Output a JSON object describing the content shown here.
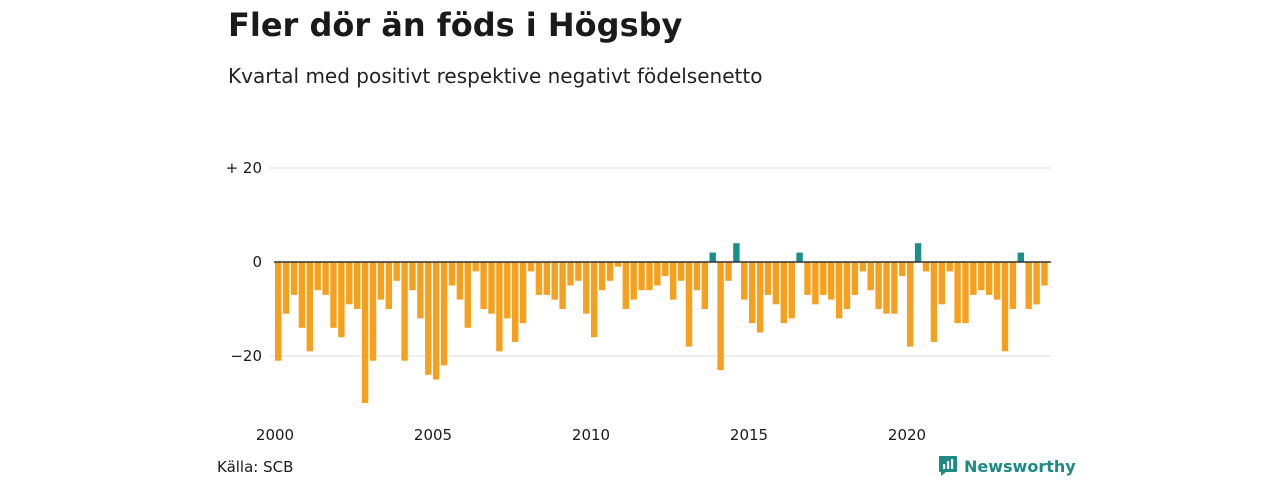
{
  "header": {
    "title": "Fler dör än föds i Högsby",
    "subtitle": "Kvartal med positivt respektive negativt födelsenetto"
  },
  "footer": {
    "source": "Källa: SCB",
    "brand": "Newsworthy",
    "brand_icon": "newsworthy-logo-icon"
  },
  "colors": {
    "positive": "#1a9089",
    "negative": "#f7a01e",
    "grid": "#dddddd",
    "brand": "#1d8a83"
  },
  "chart_data": {
    "type": "bar",
    "title": "Fler dör än föds i Högsby",
    "subtitle": "Kvartal med positivt respektive negativt födelsenetto",
    "xlabel": "",
    "ylabel": "",
    "x_start": 2000,
    "x_end": 2024.75,
    "bar_interval_years": 0.25,
    "ylim": [
      -31,
      21
    ],
    "yticks": [
      {
        "value": 20,
        "label": "+ 20"
      },
      {
        "value": 0,
        "label": "0"
      },
      {
        "value": -20,
        "label": "−20"
      }
    ],
    "xticks": [
      {
        "value": 2000,
        "label": "2000"
      },
      {
        "value": 2005,
        "label": "2005"
      },
      {
        "value": 2010,
        "label": "2010"
      },
      {
        "value": 2015,
        "label": "2015"
      },
      {
        "value": 2020,
        "label": "2020"
      }
    ],
    "grid": true,
    "legend": "none",
    "values": [
      -21,
      -11,
      -7,
      -14,
      -19,
      -6,
      -7,
      -14,
      -16,
      -9,
      -10,
      -30,
      -21,
      -8,
      -10,
      -4,
      -21,
      -6,
      -12,
      -24,
      -25,
      -22,
      -5,
      -8,
      -14,
      -2,
      -10,
      -11,
      -19,
      -12,
      -17,
      -13,
      -2,
      -7,
      -7,
      -8,
      -10,
      -5,
      -4,
      -11,
      -16,
      -6,
      -4,
      -1,
      -10,
      -8,
      -6,
      -6,
      -5,
      -3,
      -8,
      -4,
      -18,
      -6,
      -10,
      2,
      -23,
      -4,
      4,
      -8,
      -13,
      -15,
      -7,
      -9,
      -13,
      -12,
      2,
      -7,
      -9,
      -7,
      -8,
      -12,
      -10,
      -7,
      -2,
      -6,
      -10,
      -11,
      -11,
      -3,
      -18,
      4,
      -2,
      -17,
      -9,
      -2,
      -13,
      -13,
      -7,
      -6,
      -7,
      -8,
      -19,
      -10,
      2,
      -10,
      -9,
      -5
    ]
  }
}
